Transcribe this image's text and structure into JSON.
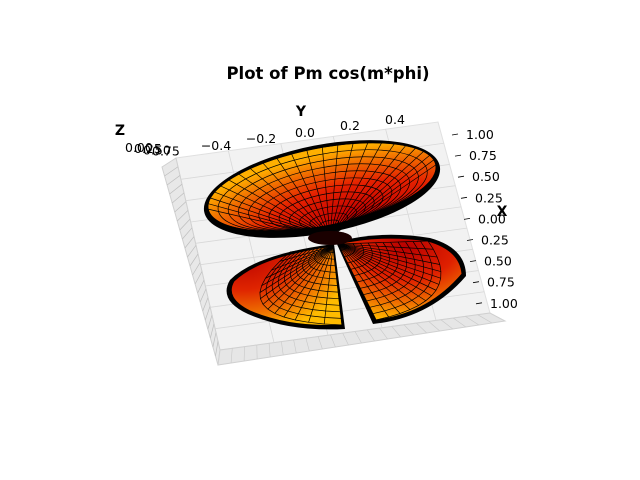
{
  "chart_data": {
    "type": "surface",
    "title": "Plot of Pm cos(m*phi)",
    "xlabel": "X",
    "ylabel": "Y",
    "zlabel": "Z",
    "x_ticks": [
      "1.00",
      "0.75",
      "0.50",
      "0.25",
      "0.00",
      "0.25",
      "0.50",
      "0.75",
      "1.00"
    ],
    "y_ticks": [
      "−0.4",
      "−0.2",
      "0.0",
      "0.2",
      "0.4"
    ],
    "z_ticks": [
      "0.00",
      "0.25",
      "0.50",
      "0.75"
    ],
    "xlim": [
      -1.0,
      1.0
    ],
    "ylim": [
      -0.5,
      0.5
    ],
    "colormap": "hot",
    "edge_color": "#000000",
    "pane_color": "#f2f2f2",
    "grid": true
  }
}
